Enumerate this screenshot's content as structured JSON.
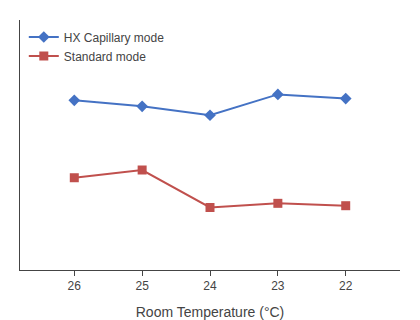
{
  "chart_data": {
    "type": "line",
    "xlabel": "Room Temperature (°C)",
    "x": [
      26,
      25,
      24,
      23,
      22
    ],
    "series": [
      {
        "name": "HX Capillary mode",
        "color": "#4472C4",
        "marker": "diamond",
        "values": [
          5.85,
          5.75,
          5.6,
          5.95,
          5.88
        ]
      },
      {
        "name": "Standard mode",
        "color": "#C0504D",
        "marker": "square",
        "values": [
          4.55,
          4.68,
          4.05,
          4.12,
          4.08
        ]
      }
    ],
    "xlim": [
      26.8,
      21.2
    ],
    "xticks": [
      26,
      25,
      24,
      23,
      22
    ],
    "ylim": [
      3.0,
      7.2
    ],
    "tick_labels": "x",
    "legend": "upper left",
    "grid": false
  }
}
